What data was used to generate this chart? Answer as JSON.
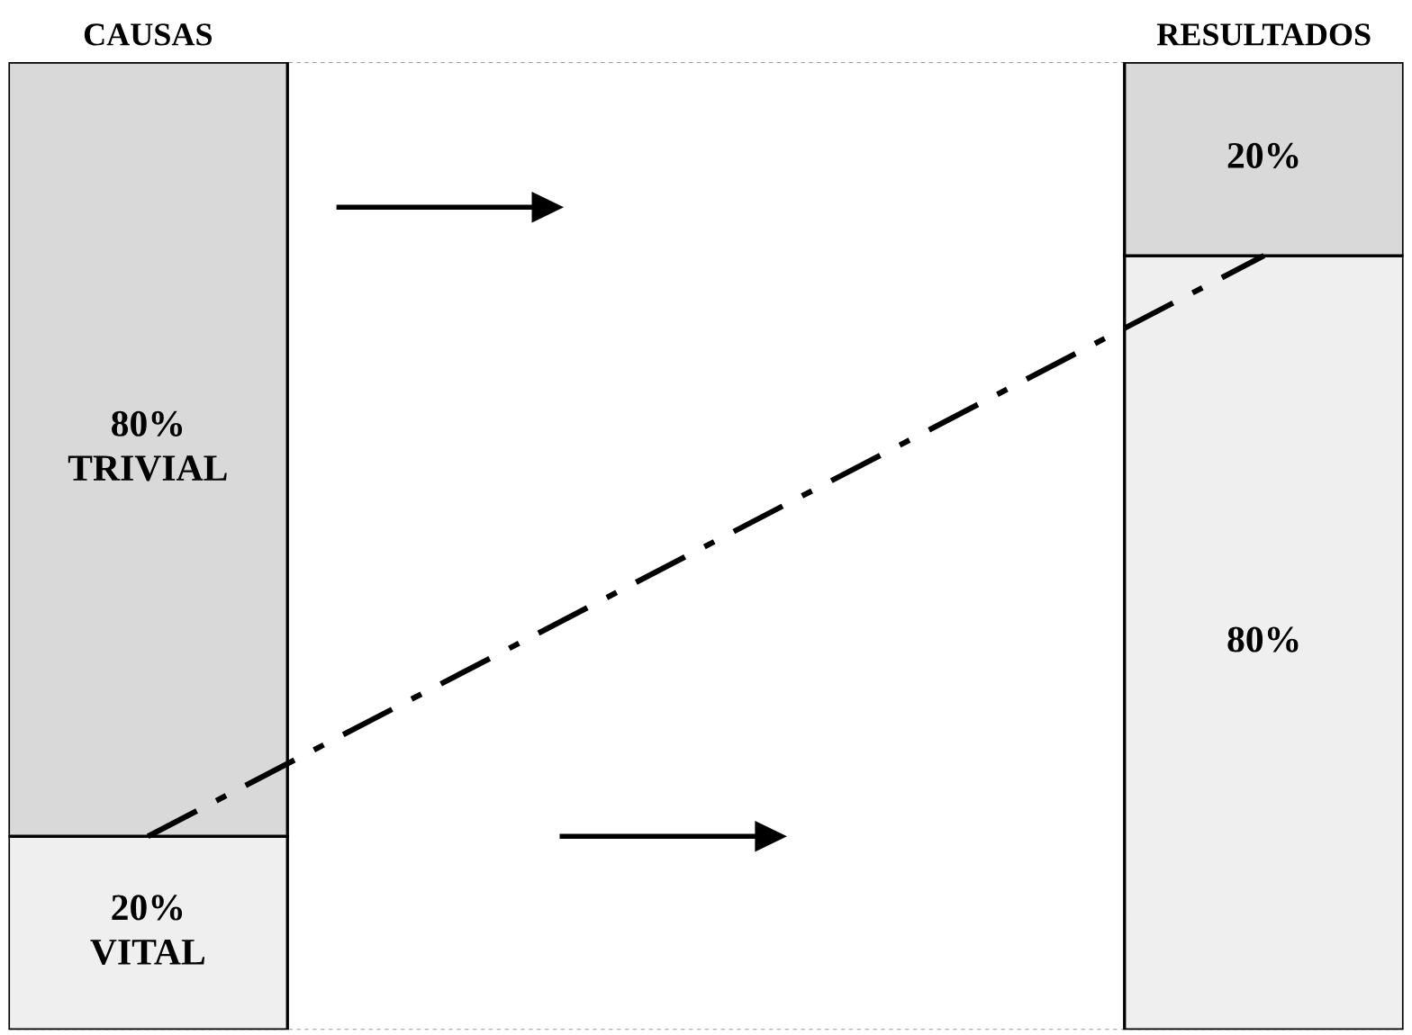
{
  "chart_data": {
    "type": "bar",
    "stacked": true,
    "categories": [
      "CAUSAS",
      "RESULTADOS"
    ],
    "series": [
      {
        "color": "#efefef",
        "values": [
          20,
          80
        ],
        "value_labels": [
          "20%\nVITAL",
          "80%"
        ]
      },
      {
        "color": "#d9d9d9",
        "values": [
          80,
          20
        ],
        "value_labels": [
          "80%\nTRIVIAL",
          "20%"
        ]
      },
      {
        "type": "line",
        "color": "#000000",
        "values": [
          20,
          80
        ],
        "line_style": "dashed"
      }
    ],
    "ylim": [
      0,
      100
    ],
    "tick_labels": "x",
    "grid": false,
    "ref_lines": [
      {
        "axis": "y",
        "value": 100,
        "color": "#999999",
        "line_style": "dotted"
      },
      {
        "axis": "y",
        "value": 0,
        "color": "#999999",
        "line_style": "dotted"
      }
    ]
  }
}
